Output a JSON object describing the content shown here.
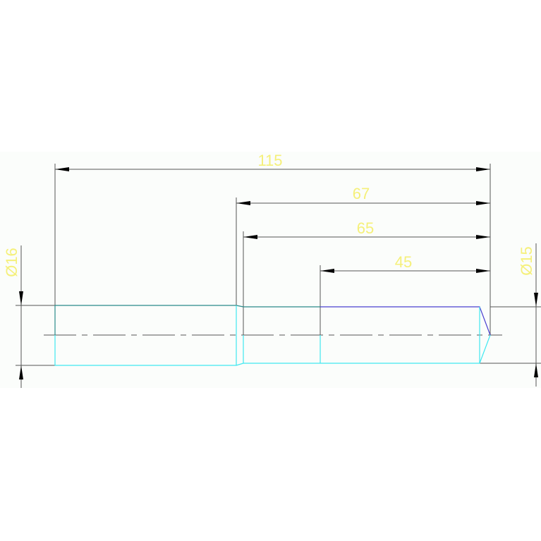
{
  "drawing": {
    "colors": {
      "background": "#fbfdfb",
      "dimension_line": "#555555",
      "dimension_text": "#f5f07a",
      "outline_upper_left": "#2a8a8a",
      "outline_upper_right": "#4a3fd0",
      "outline_lower": "#40e8f0",
      "centerline": "#555555"
    },
    "dimensions": {
      "overall_length": "115",
      "length_67": "67",
      "length_65": "65",
      "length_45": "45",
      "diameter_left": "Ø16",
      "diameter_right": "Ø15"
    }
  }
}
